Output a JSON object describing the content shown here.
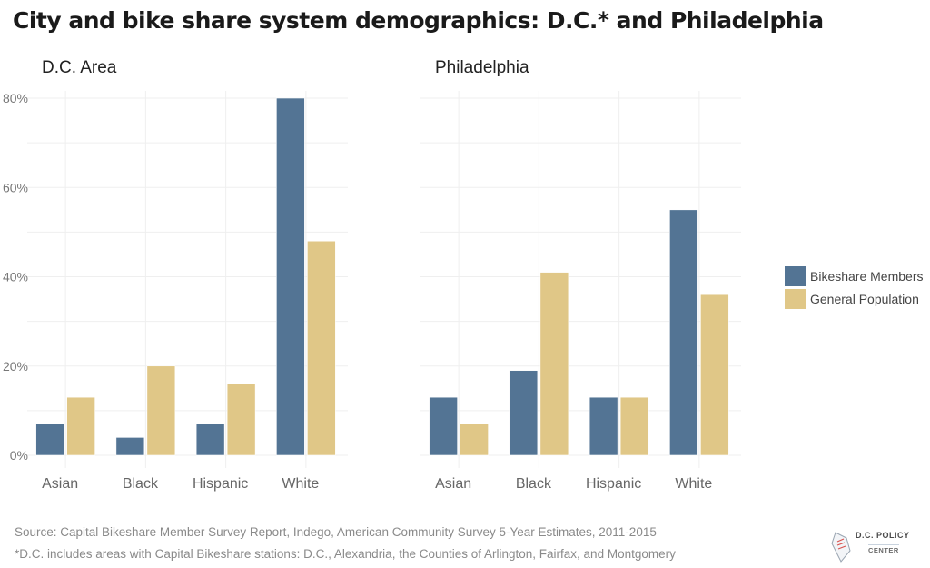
{
  "title": "City and bike share system demographics:  D.C.* and Philadelphia",
  "colors": {
    "members": "#537494",
    "population": "#e0c787"
  },
  "chart_data": [
    {
      "type": "bar",
      "title": "D.C. Area",
      "categories": [
        "Asian",
        "Black",
        "Hispanic",
        "White"
      ],
      "series": [
        {
          "name": "Bikeshare Members",
          "values": [
            7,
            4,
            7,
            80
          ]
        },
        {
          "name": "General Population",
          "values": [
            13,
            20,
            16,
            48
          ]
        }
      ],
      "ylim": [
        0,
        80
      ],
      "yticks": [
        0,
        20,
        40,
        60,
        80
      ],
      "ytick_labels": [
        "0%",
        "20%",
        "40%",
        "60%",
        "80%"
      ],
      "grid": true
    },
    {
      "type": "bar",
      "title": "Philadelphia",
      "categories": [
        "Asian",
        "Black",
        "Hispanic",
        "White"
      ],
      "series": [
        {
          "name": "Bikeshare Members",
          "values": [
            13,
            19,
            13,
            55
          ]
        },
        {
          "name": "General Population",
          "values": [
            7,
            41,
            13,
            36
          ]
        }
      ],
      "ylim": [
        0,
        80
      ],
      "grid": true
    }
  ],
  "legend": {
    "position": "right",
    "items": [
      "Bikeshare Members",
      "General Population"
    ]
  },
  "footer": {
    "source": "Source:  Capital Bikeshare Member Survey Report, Indego, American Community Survey 5-Year Estimates, 2011-2015",
    "note": "*D.C. includes areas with Capital Bikeshare stations:  D.C., Alexandria, the Counties of Arlington, Fairfax, and Montgomery"
  },
  "logo": {
    "line1": "D.C. POLICY",
    "line2": "CENTER"
  }
}
